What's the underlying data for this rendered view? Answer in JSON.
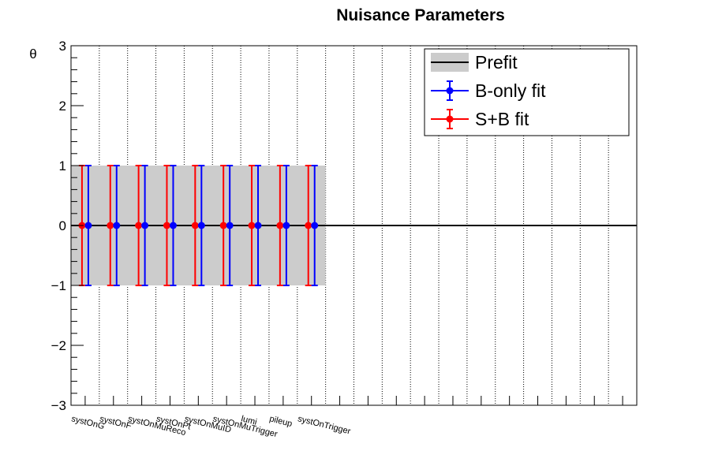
{
  "chart_data": {
    "type": "scatter",
    "title": "Nuisance Parameters",
    "ylabel": "θ",
    "xlabel": "",
    "ylim": [
      -3,
      3
    ],
    "y_ticks": [
      "3",
      "2",
      "1",
      "0",
      "−1",
      "−2",
      "−3"
    ],
    "categories": [
      "systOnG",
      "systOnF",
      "systOnMuReco",
      "systOnPt",
      "systOnMuID",
      "systOnMuTrigger",
      "lumi",
      "pileup",
      "systOnTrigger"
    ],
    "total_bins": 20,
    "grid": "vertical dotted",
    "legend_position": "top-right",
    "prefit_band": {
      "center": 0,
      "err": 1,
      "color": "#cccccc"
    },
    "series": [
      {
        "name": "Prefit",
        "color": "#000000",
        "values": [
          0,
          0,
          0,
          0,
          0,
          0,
          0,
          0,
          0
        ]
      },
      {
        "name": "B-only fit",
        "color": "#0000ff",
        "values": [
          0,
          0,
          0,
          0,
          0,
          0,
          0,
          0,
          0
        ],
        "errors": [
          1,
          1,
          1,
          1,
          1,
          1,
          1,
          1,
          1
        ]
      },
      {
        "name": "S+B fit",
        "color": "#ff0000",
        "values": [
          0,
          0,
          0,
          0,
          0,
          0,
          0,
          0,
          0
        ],
        "errors": [
          1,
          1,
          1,
          1,
          1,
          1,
          1,
          1,
          1
        ]
      }
    ]
  }
}
